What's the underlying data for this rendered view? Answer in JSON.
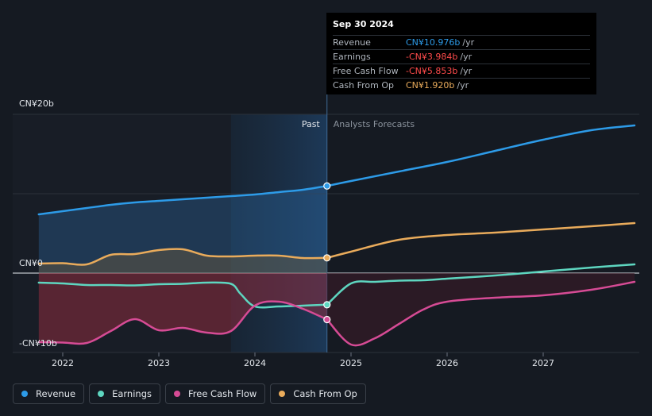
{
  "chart_data": {
    "type": "line",
    "x_unit": "year",
    "x_range": [
      2021.55,
      2027.95
    ],
    "ylim": [
      -10,
      20
    ],
    "y_tick_labels": [
      "CN¥20b",
      "CN¥0",
      "-CN¥10b"
    ],
    "x_tick_labels": [
      "2022",
      "2023",
      "2024",
      "2025",
      "2026",
      "2027"
    ],
    "past_label": "Past",
    "forecast_label": "Analysts Forecasts",
    "forecast_start": 2024.75,
    "highlight_from": 2023.75,
    "grid": true,
    "legend_position": "bottom-left",
    "series": [
      {
        "name": "Revenue",
        "color": "#2d9be8",
        "fill": true,
        "past": [
          [
            2021.75,
            7.4
          ],
          [
            2022.0,
            7.8
          ],
          [
            2022.25,
            8.2
          ],
          [
            2022.5,
            8.6
          ],
          [
            2022.75,
            8.9
          ],
          [
            2023.0,
            9.1
          ],
          [
            2023.25,
            9.3
          ],
          [
            2023.5,
            9.5
          ],
          [
            2023.75,
            9.7
          ],
          [
            2024.0,
            9.9
          ],
          [
            2024.25,
            10.2
          ],
          [
            2024.5,
            10.5
          ],
          [
            2024.75,
            10.976
          ]
        ],
        "forecast": [
          [
            2024.75,
            10.976
          ],
          [
            2025.0,
            11.6
          ],
          [
            2025.5,
            12.8
          ],
          [
            2026.0,
            14.0
          ],
          [
            2026.5,
            15.4
          ],
          [
            2027.0,
            16.8
          ],
          [
            2027.5,
            18.0
          ],
          [
            2027.95,
            18.6
          ]
        ]
      },
      {
        "name": "Earnings",
        "color": "#5ed6c0",
        "fill": true,
        "past": [
          [
            2021.75,
            -1.2
          ],
          [
            2022.0,
            -1.3
          ],
          [
            2022.25,
            -1.5
          ],
          [
            2022.5,
            -1.5
          ],
          [
            2022.75,
            -1.55
          ],
          [
            2023.0,
            -1.4
          ],
          [
            2023.25,
            -1.35
          ],
          [
            2023.5,
            -1.2
          ],
          [
            2023.75,
            -1.35
          ],
          [
            2023.85,
            -2.6
          ],
          [
            2024.0,
            -4.2
          ],
          [
            2024.25,
            -4.2
          ],
          [
            2024.5,
            -4.1
          ],
          [
            2024.75,
            -3.984
          ]
        ],
        "forecast": [
          [
            2024.75,
            -3.984
          ],
          [
            2025.0,
            -1.3
          ],
          [
            2025.25,
            -1.1
          ],
          [
            2025.5,
            -0.95
          ],
          [
            2025.75,
            -0.9
          ],
          [
            2026.0,
            -0.7
          ],
          [
            2026.5,
            -0.3
          ],
          [
            2027.0,
            0.2
          ],
          [
            2027.5,
            0.7
          ],
          [
            2027.95,
            1.1
          ]
        ]
      },
      {
        "name": "Free Cash Flow",
        "color": "#d64b95",
        "fill": false,
        "past": [
          [
            2021.75,
            -8.7
          ],
          [
            2022.0,
            -8.75
          ],
          [
            2022.25,
            -8.8
          ],
          [
            2022.5,
            -7.3
          ],
          [
            2022.75,
            -5.8
          ],
          [
            2023.0,
            -7.2
          ],
          [
            2023.25,
            -6.9
          ],
          [
            2023.5,
            -7.5
          ],
          [
            2023.75,
            -7.3
          ],
          [
            2024.0,
            -4.1
          ],
          [
            2024.25,
            -3.6
          ],
          [
            2024.5,
            -4.5
          ],
          [
            2024.75,
            -5.853
          ]
        ],
        "forecast": [
          [
            2024.75,
            -5.853
          ],
          [
            2025.0,
            -9.0
          ],
          [
            2025.25,
            -8.2
          ],
          [
            2025.5,
            -6.4
          ],
          [
            2025.75,
            -4.6
          ],
          [
            2026.0,
            -3.6
          ],
          [
            2026.5,
            -3.1
          ],
          [
            2027.0,
            -2.8
          ],
          [
            2027.5,
            -2.1
          ],
          [
            2027.95,
            -1.1
          ]
        ]
      },
      {
        "name": "Cash From Op",
        "color": "#e9ab5b",
        "fill": true,
        "past": [
          [
            2021.75,
            1.2
          ],
          [
            2022.0,
            1.25
          ],
          [
            2022.25,
            1.1
          ],
          [
            2022.5,
            2.3
          ],
          [
            2022.75,
            2.4
          ],
          [
            2023.0,
            2.9
          ],
          [
            2023.25,
            3.0
          ],
          [
            2023.5,
            2.2
          ],
          [
            2023.75,
            2.1
          ],
          [
            2024.0,
            2.2
          ],
          [
            2024.25,
            2.2
          ],
          [
            2024.5,
            1.9
          ],
          [
            2024.75,
            1.92
          ]
        ],
        "forecast": [
          [
            2024.75,
            1.92
          ],
          [
            2025.0,
            2.7
          ],
          [
            2025.5,
            4.2
          ],
          [
            2026.0,
            4.8
          ],
          [
            2026.5,
            5.1
          ],
          [
            2027.0,
            5.5
          ],
          [
            2027.5,
            5.9
          ],
          [
            2027.95,
            6.3
          ]
        ]
      }
    ]
  },
  "tooltip": {
    "date": "Sep 30 2024",
    "rows": [
      {
        "label": "Revenue",
        "value": "CN¥10.976b",
        "unit": "/yr",
        "color": "#2d9be8"
      },
      {
        "label": "Earnings",
        "value": "-CN¥3.984b",
        "unit": "/yr",
        "color": "#ff4b4b"
      },
      {
        "label": "Free Cash Flow",
        "value": "-CN¥5.853b",
        "unit": "/yr",
        "color": "#ff4b4b"
      },
      {
        "label": "Cash From Op",
        "value": "CN¥1.920b",
        "unit": "/yr",
        "color": "#e9ab5b"
      }
    ]
  },
  "legend": [
    {
      "label": "Revenue",
      "color": "#2d9be8"
    },
    {
      "label": "Earnings",
      "color": "#5ed6c0"
    },
    {
      "label": "Free Cash Flow",
      "color": "#d64b95"
    },
    {
      "label": "Cash From Op",
      "color": "#e9ab5b"
    }
  ]
}
